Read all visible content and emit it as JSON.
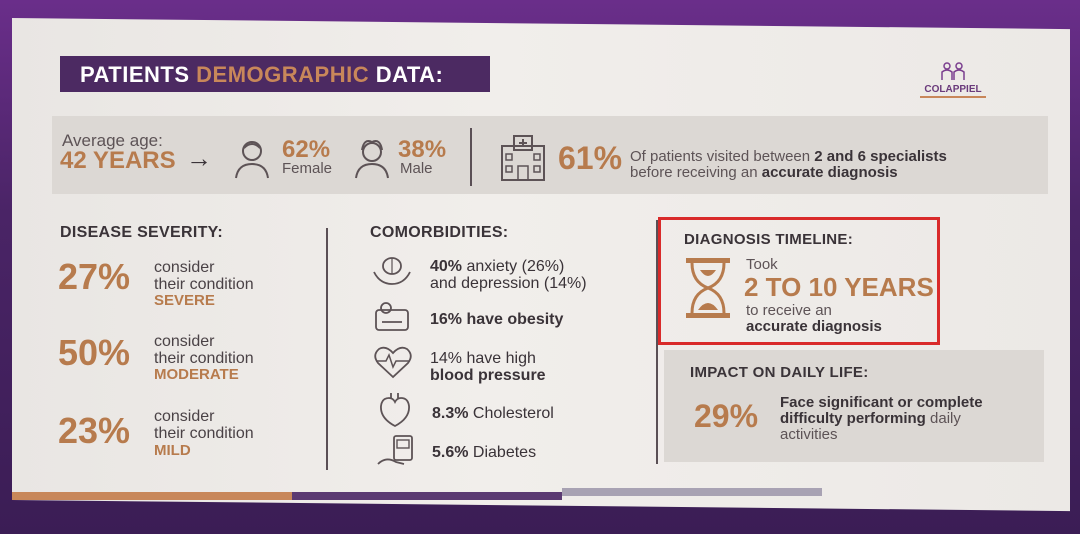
{
  "slide": {
    "title_part1": "PATIENTS ",
    "title_accent": "DEMOGRAPHIC",
    "title_part2": " DATA:",
    "logo_text": "COLAPPIEL"
  },
  "stats": {
    "avg_age_label": "Average age:",
    "avg_age_value": "42 YEARS",
    "arrow": "→",
    "female_pct": "62%",
    "female_label": "Female",
    "male_pct": "38%",
    "male_label": "Male",
    "specialists_pct": "61%",
    "specialists_line1_a": "Of patients visited between ",
    "specialists_line1_b": "2 and 6 specialists",
    "specialists_line2_a": "before receiving an ",
    "specialists_line2_b": "accurate diagnosis"
  },
  "severity": {
    "title": "DISEASE SEVERITY:",
    "items": [
      {
        "pct": "27%",
        "line1": "consider",
        "line2": "their condition",
        "level": "SEVERE"
      },
      {
        "pct": "50%",
        "line1": "consider",
        "line2": "their condition",
        "level": "MODERATE"
      },
      {
        "pct": "23%",
        "line1": "consider",
        "line2": "their condition",
        "level": "MILD"
      }
    ]
  },
  "comorbidities": {
    "title": "COMORBIDITIES:",
    "items": [
      {
        "bold": "40%",
        "text": " anxiety (26%)",
        "line2": "and depression (14%)"
      },
      {
        "bold": "16% have obesity",
        "text": "",
        "line2": ""
      },
      {
        "bold": "",
        "text": "14% have high",
        "line2": "blood pressure"
      },
      {
        "bold": "8.3%",
        "text": " Cholesterol",
        "line2": ""
      },
      {
        "bold": "5.6%",
        "text": " Diabetes",
        "line2": ""
      }
    ]
  },
  "diagnosis": {
    "title": "DIAGNOSIS TIMELINE:",
    "took": "Took",
    "years": "2 TO 10 YEARS",
    "line1": "to receive an",
    "line2": "accurate diagnosis"
  },
  "impact": {
    "title": "IMPACT ON DAILY LIFE:",
    "pct": "29%",
    "line1": "Face significant or complete",
    "line2_bold": "difficulty performing",
    "line2_rest": " daily",
    "line3": "activities"
  },
  "colors": {
    "accent": "#b77b4d",
    "title_bg": "#4c2a62",
    "highlight": "#d92a2a"
  }
}
